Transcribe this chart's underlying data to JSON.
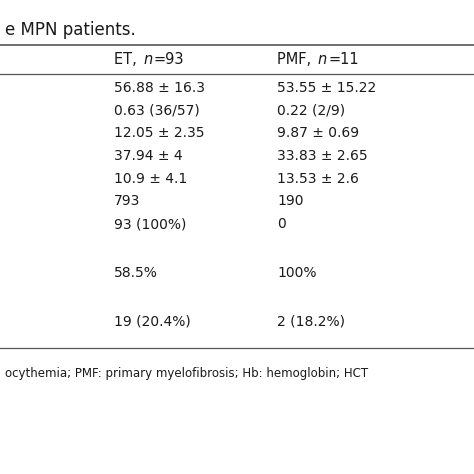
{
  "title": "e MPN patients.",
  "col1_header_normal": "ET, ",
  "col1_header_italic": "n=93",
  "col2_header_normal": "PMF, ",
  "col2_header_italic": "n=11",
  "col1_values": [
    "56.88 ± 16.3",
    "0.63 (36/57)",
    "12.05 ± 2.35",
    "37.94 ± 4",
    "10.9 ± 4.1",
    "793",
    "93 (100%)",
    "58.5%",
    "19 (20.4%)"
  ],
  "col2_values": [
    "53.55 ± 15.22",
    "0.22 (2/9)",
    "9.87 ± 0.69",
    "33.83 ± 2.65",
    "13.53 ± 2.6",
    "190",
    "0",
    "100%",
    "2 (18.2%)"
  ],
  "row_group_breaks": [
    7,
    8
  ],
  "footer": "ocythemia; PMF: primary myelofibrosis; Hb: hemoglobin; HCT",
  "bg_color": "#ffffff",
  "text_color": "#1a1a1a",
  "line_color": "#555555",
  "title_fontsize": 12,
  "header_fontsize": 10.5,
  "data_fontsize": 10,
  "footer_fontsize": 8.5
}
